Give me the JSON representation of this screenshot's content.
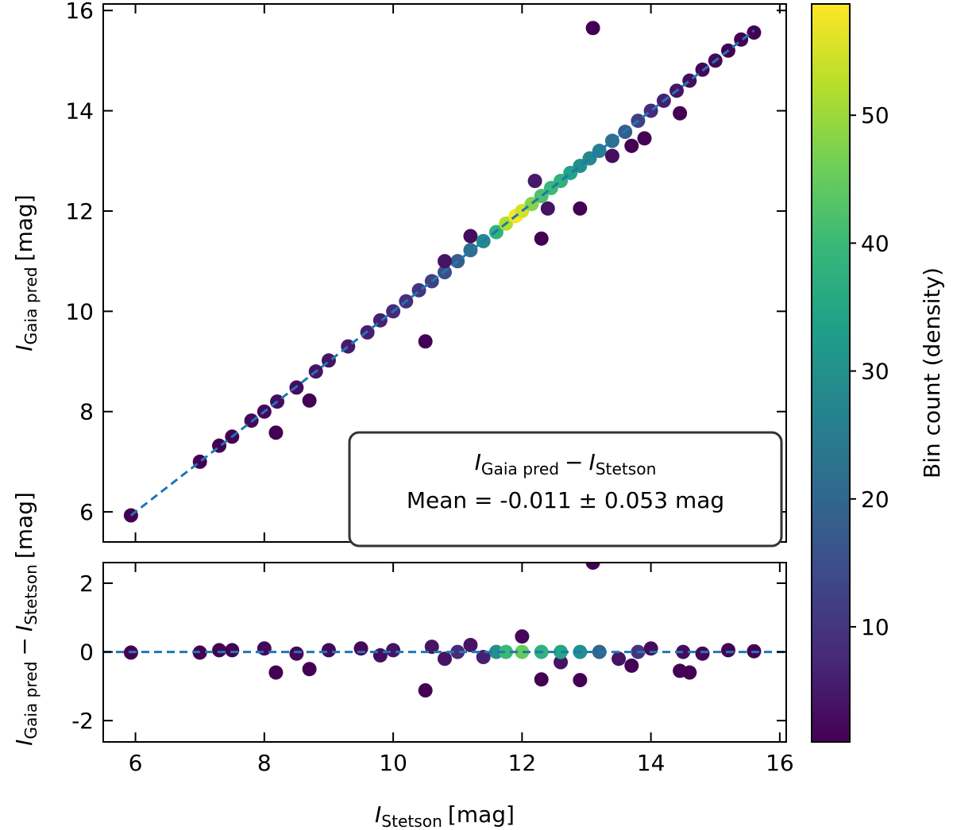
{
  "chart_data": [
    {
      "type": "scatter",
      "ylabel": [
        {
          "text": "I",
          "style": "italic"
        },
        {
          "text": "Gaia pred",
          "style": "sub"
        },
        {
          "text": "[mag]",
          "style": "normal"
        }
      ],
      "x": [
        5.93,
        7.0,
        7.3,
        7.5,
        7.8,
        8.0,
        8.18,
        8.2,
        8.5,
        8.7,
        8.8,
        9.0,
        9.3,
        9.6,
        9.8,
        10.0,
        10.2,
        10.5,
        10.4,
        10.6,
        10.8,
        11.0,
        11.2,
        10.8,
        11.2,
        11.4,
        11.6,
        12.2,
        12.4,
        11.75,
        11.9,
        12.0,
        12.15,
        12.3,
        12.3,
        12.45,
        12.6,
        12.75,
        12.9,
        12.9,
        13.05,
        13.1,
        13.2,
        13.4,
        13.4,
        13.6,
        13.7,
        13.8,
        13.9,
        14.0,
        14.2,
        14.45,
        14.4,
        14.6,
        14.8,
        15.0,
        15.2,
        15.4,
        15.6
      ],
      "y": [
        5.93,
        7.0,
        7.32,
        7.5,
        7.82,
        8.0,
        7.58,
        8.2,
        8.48,
        8.22,
        8.8,
        9.02,
        9.3,
        9.58,
        9.82,
        10.0,
        10.2,
        9.4,
        10.42,
        10.6,
        10.78,
        11.0,
        11.22,
        11.0,
        11.5,
        11.4,
        11.58,
        12.6,
        12.05,
        11.75,
        11.9,
        12.0,
        12.14,
        12.3,
        11.45,
        12.46,
        12.6,
        12.76,
        12.9,
        12.05,
        13.05,
        15.65,
        13.2,
        13.4,
        13.1,
        13.58,
        13.3,
        13.8,
        13.45,
        14.0,
        14.2,
        13.95,
        14.4,
        14.6,
        14.82,
        15.0,
        15.2,
        15.42,
        15.56
      ],
      "density": [
        1,
        1,
        1,
        1,
        2,
        2,
        1,
        3,
        3,
        1,
        4,
        4,
        5,
        6,
        6,
        8,
        9,
        1,
        10,
        12,
        15,
        18,
        22,
        4,
        3,
        28,
        38,
        5,
        4,
        52,
        58,
        55,
        48,
        42,
        1,
        40,
        38,
        34,
        30,
        1,
        28,
        1,
        26,
        22,
        3,
        18,
        1,
        12,
        1,
        8,
        6,
        1,
        4,
        3,
        2,
        2,
        1,
        1,
        1
      ],
      "xlim": [
        5.5,
        16.1
      ],
      "ylim": [
        5.4,
        16.13
      ],
      "xticks": [
        6,
        8,
        10,
        12,
        14,
        16
      ],
      "yticks": [
        6,
        8,
        10,
        12,
        14,
        16
      ],
      "reference_line": {
        "x": [
          5.93,
          15.6
        ],
        "y": [
          5.93,
          15.6
        ],
        "color": "#1f77b4"
      },
      "annotation": {
        "expression": [
          {
            "text": "I",
            "style": "italic"
          },
          {
            "text": "Gaia pred",
            "style": "sub"
          },
          {
            "text": "−",
            "style": "normal"
          },
          {
            "text": "I",
            "style": "italic"
          },
          {
            "text": "Stetson",
            "style": "sub"
          }
        ],
        "text": "Mean = -0.011 ± 0.053 mag"
      },
      "colormap": "viridis",
      "colorbar": {
        "label": "Bin count (density)",
        "lim": [
          1,
          58.7
        ],
        "ticks": [
          10,
          20,
          30,
          40,
          50
        ]
      }
    },
    {
      "type": "scatter",
      "xlabel": [
        {
          "text": "I",
          "style": "italic"
        },
        {
          "text": "Stetson",
          "style": "sub"
        },
        {
          "text": "[mag]",
          "style": "normal"
        }
      ],
      "ylabel": [
        {
          "text": "I",
          "style": "italic"
        },
        {
          "text": "Gaia pred",
          "style": "sub"
        },
        {
          "text": "−",
          "style": "normal"
        },
        {
          "text": "I",
          "style": "italic"
        },
        {
          "text": "Stetson",
          "style": "sub"
        },
        {
          "text": "[mag]",
          "style": "normal"
        }
      ],
      "x": [
        5.93,
        7.0,
        7.3,
        7.5,
        8.18,
        8.7,
        8.0,
        8.5,
        9.0,
        9.5,
        9.8,
        10.0,
        10.5,
        10.6,
        10.8,
        11.0,
        11.2,
        11.4,
        11.6,
        11.75,
        12.0,
        12.0,
        12.3,
        12.3,
        12.6,
        12.6,
        12.9,
        12.9,
        13.1,
        13.2,
        13.5,
        13.7,
        13.8,
        14.0,
        14.45,
        14.6,
        14.5,
        14.8,
        15.2,
        15.6
      ],
      "y": [
        -0.02,
        -0.02,
        0.05,
        0.05,
        -0.6,
        -0.5,
        0.1,
        -0.05,
        0.05,
        0.1,
        -0.1,
        0.05,
        -1.12,
        0.15,
        -0.2,
        0.0,
        0.2,
        -0.15,
        0.0,
        0.0,
        0.45,
        0.0,
        -0.8,
        0.0,
        -0.3,
        0.0,
        -0.82,
        0.0,
        2.6,
        0.0,
        -0.2,
        -0.4,
        0.0,
        0.1,
        -0.55,
        -0.6,
        0.0,
        -0.05,
        0.05,
        0.02
      ],
      "density": [
        1,
        1,
        1,
        1,
        1,
        1,
        2,
        2,
        2,
        2,
        3,
        4,
        1,
        4,
        4,
        8,
        4,
        6,
        30,
        40,
        2,
        45,
        1,
        38,
        4,
        35,
        1,
        30,
        1,
        20,
        4,
        1,
        10,
        3,
        1,
        1,
        3,
        2,
        1,
        1
      ],
      "xlim": [
        5.5,
        16.1
      ],
      "ylim": [
        -2.62,
        2.6
      ],
      "xticks": [
        6,
        8,
        10,
        12,
        14,
        16
      ],
      "yticks": [
        -2,
        0,
        2
      ],
      "reference_line": {
        "y": 0,
        "color": "#1f77b4"
      },
      "colormap": "viridis"
    }
  ]
}
